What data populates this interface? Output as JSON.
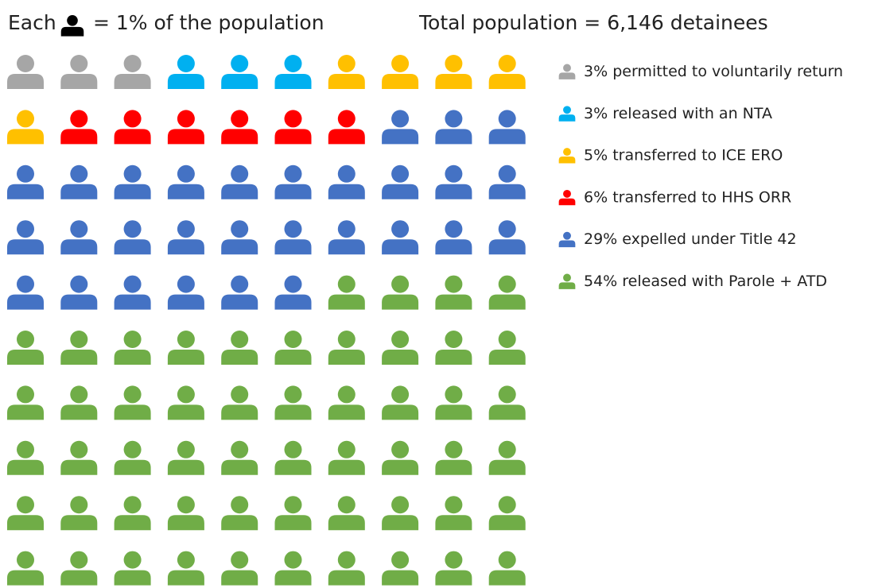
{
  "chart_data": {
    "type": "pictogram",
    "title_prefix": "Each",
    "title_suffix": "= 1% of the population",
    "subtitle": "Total population = 6,146 detainees",
    "key_color": "#000000",
    "columns": 10,
    "series": [
      {
        "name": "permitted to voluntarily return",
        "value": 3,
        "value_label": "3%",
        "color": "#a6a6a6"
      },
      {
        "name": "released with an NTA",
        "value": 3,
        "value_label": "3%",
        "color": "#00b0f0"
      },
      {
        "name": "transferred to ICE ERO",
        "value": 5,
        "value_label": "5%",
        "color": "#ffc000"
      },
      {
        "name": "transferred to HHS ORR",
        "value": 6,
        "value_label": "6%",
        "color": "#ff0000"
      },
      {
        "name": "expelled under Title 42",
        "value": 29,
        "value_label": "29%",
        "color": "#4472c4"
      },
      {
        "name": "released with Parole + ATD",
        "value": 54,
        "value_label": "54%",
        "color": "#70ad47"
      }
    ]
  }
}
